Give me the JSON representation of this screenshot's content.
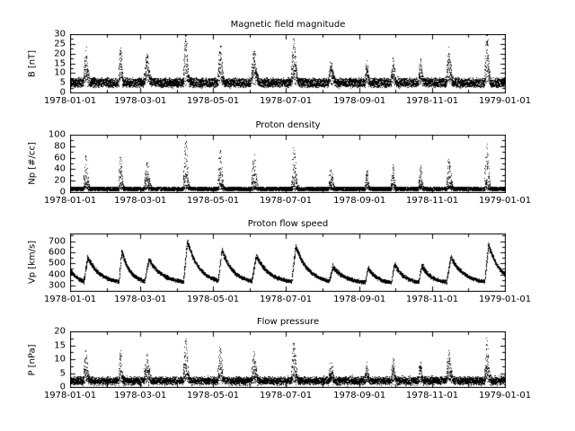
{
  "figure": {
    "background": "#ffffff",
    "foreground": "#000000"
  },
  "xaxis": {
    "span_days": 365,
    "tick_days": [
      0,
      59,
      120,
      181,
      243,
      304,
      365
    ],
    "tick_labels": [
      "1978-01-01",
      "1978-03-01",
      "1978-05-01",
      "1978-07-01",
      "1978-09-01",
      "1978-11-01",
      "1979-01-01"
    ],
    "minor_tick_days": [
      31,
      90,
      151,
      212,
      273,
      334
    ]
  },
  "chart_data": [
    {
      "type": "scatter",
      "title": "Magnetic field magnitude",
      "ylabel": "B [nT]",
      "ylim": [
        0,
        30
      ],
      "yticks": [
        0,
        5,
        10,
        15,
        20,
        25,
        30
      ],
      "minor_step": 2.5,
      "xticks": [
        "1978-01-01",
        "1978-03-01",
        "1978-05-01",
        "1978-07-01",
        "1978-09-01",
        "1978-11-01",
        "1979-01-01"
      ],
      "marker": {
        "shape": "dot",
        "size": 1,
        "color": "#000000"
      },
      "visible_range": [
        1,
        28
      ],
      "gen": {
        "quantity": "B",
        "base": 3,
        "noise": 4,
        "spike": 24,
        "spike_pow": 1,
        "clip": [
          0.4,
          29.5
        ]
      }
    },
    {
      "type": "scatter",
      "title": "Proton density",
      "ylabel": "Np [#/cc]",
      "ylim": [
        0,
        100
      ],
      "yticks": [
        0,
        20,
        40,
        60,
        80,
        100
      ],
      "minor_step": 10,
      "xticks": [
        "1978-01-01",
        "1978-03-01",
        "1978-05-01",
        "1978-07-01",
        "1978-09-01",
        "1978-11-01",
        "1979-01-01"
      ],
      "marker": {
        "shape": "dot",
        "size": 1,
        "color": "#000000"
      },
      "visible_range": [
        0,
        90
      ],
      "gen": {
        "quantity": "Np",
        "base": 2.5,
        "noise": 6,
        "spike": 85,
        "spike_pow": 2,
        "clip": [
          0.3,
          98
        ]
      }
    },
    {
      "type": "scatter",
      "title": "Proton flow speed",
      "ylabel": "Vp [km/s]",
      "ylim": [
        250,
        770
      ],
      "yticks": [
        300,
        400,
        500,
        600,
        700
      ],
      "minor_step": 50,
      "xticks": [
        "1978-01-01",
        "1978-03-01",
        "1978-05-01",
        "1978-07-01",
        "1978-09-01",
        "1978-11-01",
        "1979-01-01"
      ],
      "marker": {
        "shape": "dot",
        "size": 1,
        "color": "#000000"
      },
      "visible_range": [
        290,
        750
      ],
      "gen": {
        "quantity": "Vp",
        "base": 318,
        "stream_amp": 335,
        "noise": 18,
        "clip": [
          262,
          768
        ]
      }
    },
    {
      "type": "scatter",
      "title": "Flow pressure",
      "ylabel": "P [nPa]",
      "ylim": [
        0,
        20
      ],
      "yticks": [
        0,
        5,
        10,
        15,
        20
      ],
      "minor_step": 2.5,
      "xticks": [
        "1978-01-01",
        "1978-03-01",
        "1978-05-01",
        "1978-07-01",
        "1978-09-01",
        "1978-11-01",
        "1979-01-01"
      ],
      "marker": {
        "shape": "dot",
        "size": 1,
        "color": "#000000"
      },
      "visible_range": [
        0,
        18
      ],
      "gen": {
        "quantity": "P",
        "base": 1.2,
        "noise": 2,
        "spike": 15,
        "spike_pow": 1.5,
        "clip": [
          0.2,
          19.5
        ]
      }
    }
  ],
  "sampling": {
    "seed": 1978,
    "points_per_panel": 8760,
    "streams": 14
  }
}
